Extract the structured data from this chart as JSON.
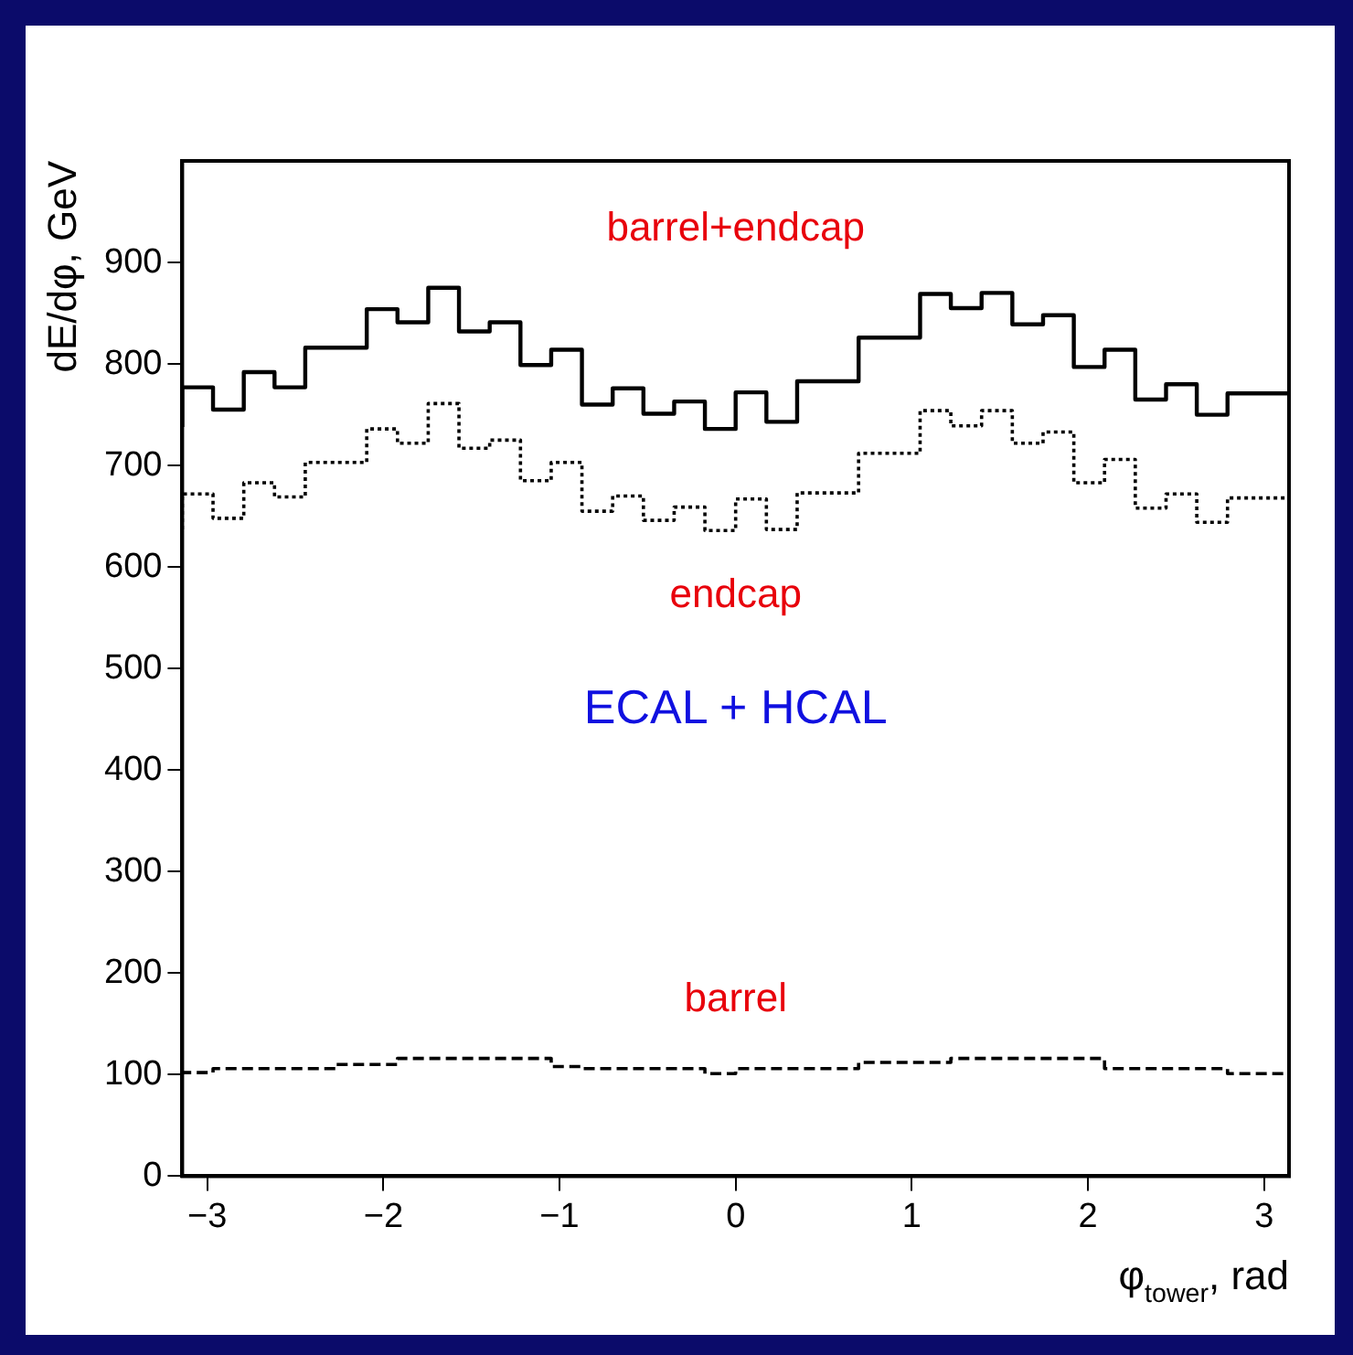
{
  "chart_data": {
    "type": "step",
    "xlabel": "φ$_{tower}$, rad",
    "ylabel": "dE/dφ, GeV",
    "x": [
      -3.1416,
      -2.9671,
      -2.7925,
      -2.618,
      -2.4435,
      -2.2689,
      -2.0944,
      -1.9199,
      -1.7453,
      -1.5708,
      -1.3963,
      -1.2217,
      -1.0472,
      -0.8727,
      -0.6981,
      -0.5236,
      -0.3491,
      -0.1745,
      0,
      0.1745,
      0.3491,
      0.5236,
      0.6981,
      0.8727,
      1.0472,
      1.2217,
      1.3963,
      1.5708,
      1.7453,
      1.9199,
      2.0944,
      2.2689,
      2.4435,
      2.618,
      2.7925,
      2.9671,
      3.1416
    ],
    "series": [
      {
        "name": "barrel+endcap",
        "color": "#000000",
        "line_style": "solid",
        "values": [
          738,
          777,
          755,
          792,
          777,
          816,
          816,
          854,
          841,
          875,
          832,
          841,
          799,
          814,
          760,
          776,
          751,
          763,
          736,
          772,
          743,
          783,
          783,
          826,
          826,
          869,
          855,
          870,
          839,
          848,
          797,
          814,
          765,
          780,
          750,
          771,
          771
        ]
      },
      {
        "name": "endcap",
        "color": "#000000",
        "line_style": "dotted",
        "values": [
          637,
          672,
          648,
          683,
          669,
          703,
          703,
          736,
          722,
          761,
          717,
          725,
          685,
          703,
          655,
          670,
          646,
          659,
          636,
          667,
          637,
          673,
          673,
          712,
          712,
          754,
          739,
          754,
          722,
          733,
          683,
          706,
          658,
          672,
          644,
          668,
          668
        ]
      },
      {
        "name": "barrel",
        "color": "#000000",
        "line_style": "dashed",
        "values": [
          100,
          102,
          106,
          106,
          106,
          106,
          110,
          110,
          116,
          116,
          116,
          116,
          116,
          108,
          106,
          106,
          106,
          106,
          101,
          106,
          106,
          106,
          106,
          112,
          112,
          112,
          116,
          116,
          116,
          116,
          116,
          106,
          106,
          106,
          106,
          101,
          101
        ]
      }
    ],
    "annotations": [
      "ECAL + HCAL"
    ],
    "xlim": [
      -3.1416,
      3.1416
    ],
    "xticks": [
      -3,
      -2,
      -1,
      0,
      1,
      2,
      3
    ],
    "ylim": [
      0,
      1000
    ],
    "yticks": [
      0,
      100,
      200,
      300,
      400,
      500,
      600,
      700,
      800,
      900
    ],
    "grid": false,
    "legend": false
  }
}
